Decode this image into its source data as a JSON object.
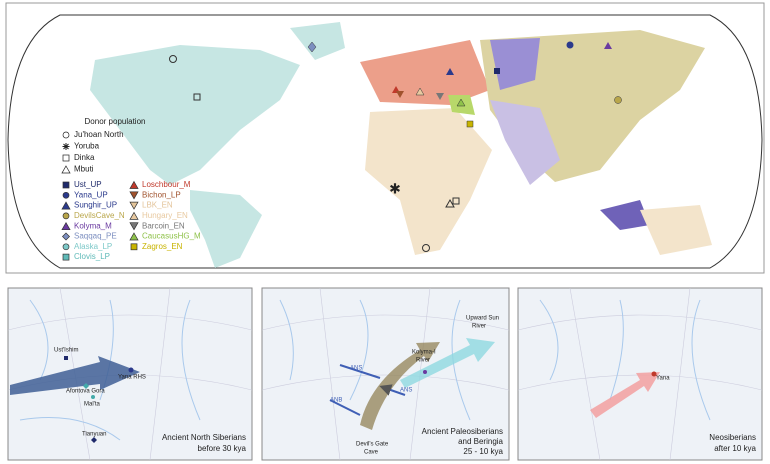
{
  "legend": {
    "title": "Donor population",
    "donors": [
      {
        "label": "Ju'hoan North",
        "symbol": "circle"
      },
      {
        "label": "Yoruba",
        "symbol": "star"
      },
      {
        "label": "Dinka",
        "symbol": "square"
      },
      {
        "label": "Mbuti",
        "symbol": "triangle"
      }
    ],
    "groups": [
      {
        "label": "Ust_UP",
        "color": "#1f2a6b",
        "symbol": "square"
      },
      {
        "label": "Yana_UP",
        "color": "#2b3a8c",
        "symbol": "circle"
      },
      {
        "label": "Sunghir_UP",
        "color": "#2b3a8c",
        "symbol": "triangle"
      },
      {
        "label": "DevilsCave_N",
        "color": "#b9a64a",
        "symbol": "circle"
      },
      {
        "label": "Kolyma_M",
        "color": "#6a3aa0",
        "symbol": "triangle"
      },
      {
        "label": "Saqqaq_PE",
        "color": "#7d8fc0",
        "symbol": "diamond"
      },
      {
        "label": "Alaska_LP",
        "color": "#7ec9c9",
        "symbol": "circle"
      },
      {
        "label": "Clovis_LP",
        "color": "#5fbab8",
        "symbol": "square"
      },
      {
        "label": "Loschbour_M",
        "color": "#c0392b",
        "symbol": "triangle"
      },
      {
        "label": "Bichon_LP",
        "color": "#a0522d",
        "symbol": "down"
      },
      {
        "label": "LBK_EN",
        "color": "#e3c49a",
        "symbol": "down"
      },
      {
        "label": "Hungary_EN",
        "color": "#e8c9a0",
        "symbol": "triangle"
      },
      {
        "label": "Barcoin_EN",
        "color": "#777777",
        "symbol": "down"
      },
      {
        "label": "CaucasusHG_M",
        "color": "#8fc24a",
        "symbol": "triangle"
      },
      {
        "label": "Zagros_EN",
        "color": "#c8b400",
        "symbol": "square"
      }
    ]
  },
  "panels": [
    {
      "labels": [
        "Ust'Ishim",
        "Yana RHS",
        "Afontova Gora",
        "Mal'ta",
        "Tianyuan"
      ],
      "caption": [
        "Ancient North Siberians",
        "before 30 kya"
      ]
    },
    {
      "labels": [
        "Upward Sun",
        "River",
        "Kolyma-I",
        "River",
        "ANS",
        "ANS",
        "ANB",
        "Devil's Gate",
        "Cave"
      ],
      "caption": [
        "Ancient Paleosiberians",
        "and Beringia",
        "25 - 10 kya"
      ]
    },
    {
      "labels": [
        "Yana"
      ],
      "caption": [
        "Neosiberians",
        "after 10 kya"
      ]
    }
  ]
}
